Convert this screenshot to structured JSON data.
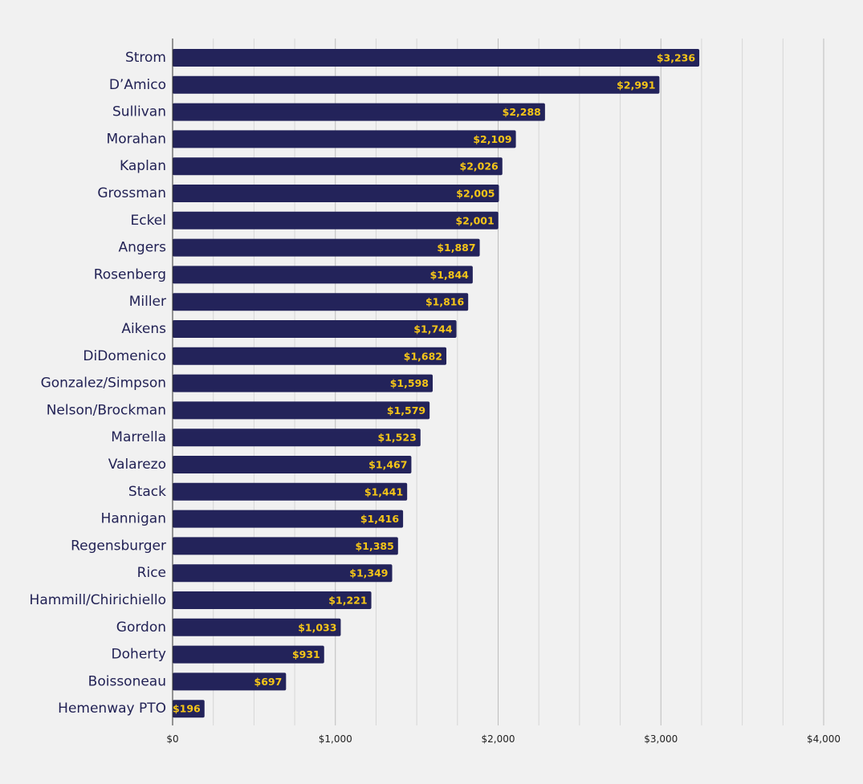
{
  "chart_data": {
    "type": "bar",
    "orientation": "horizontal",
    "categories": [
      "Strom",
      "D’Amico",
      "Sullivan",
      "Morahan",
      "Kaplan",
      "Grossman",
      "Eckel",
      "Angers",
      "Rosenberg",
      "Miller",
      "Aikens",
      "DiDomenico",
      "Gonzalez/Simpson",
      "Nelson/Brockman",
      "Marrella",
      "Valarezo",
      "Stack",
      "Hannigan",
      "Regensburger",
      "Rice",
      "Hammill/Chirichiello",
      "Gordon",
      "Doherty",
      "Boissoneau",
      "Hemenway PTO"
    ],
    "values": [
      3236,
      2991,
      2288,
      2109,
      2026,
      2005,
      2001,
      1887,
      1844,
      1816,
      1744,
      1682,
      1598,
      1579,
      1523,
      1467,
      1441,
      1416,
      1385,
      1349,
      1221,
      1033,
      931,
      697,
      196
    ],
    "value_labels": [
      "$3,236",
      "$2,991",
      "$2,288",
      "$2,109",
      "$2,026",
      "$2,005",
      "$2,001",
      "$1,887",
      "$1,844",
      "$1,816",
      "$1,744",
      "$1,682",
      "$1,598",
      "$1,579",
      "$1,523",
      "$1,467",
      "$1,441",
      "$1,416",
      "$1,385",
      "$1,349",
      "$1,221",
      "$1,033",
      "$931",
      "$697",
      "$196"
    ],
    "x_ticks": [
      0,
      1000,
      2000,
      3000,
      4000
    ],
    "x_tick_labels": [
      "$0",
      "$1,000",
      "$2,000",
      "$3,000",
      "$4,000"
    ],
    "xlim": [
      0,
      4000
    ],
    "minor_grid_step": 250,
    "grid": true,
    "legend": "none",
    "title": "",
    "xlabel": "",
    "ylabel": "",
    "bar_color": "#23235a",
    "label_color": "#f5c518",
    "background_color": "#f1f1f1"
  }
}
